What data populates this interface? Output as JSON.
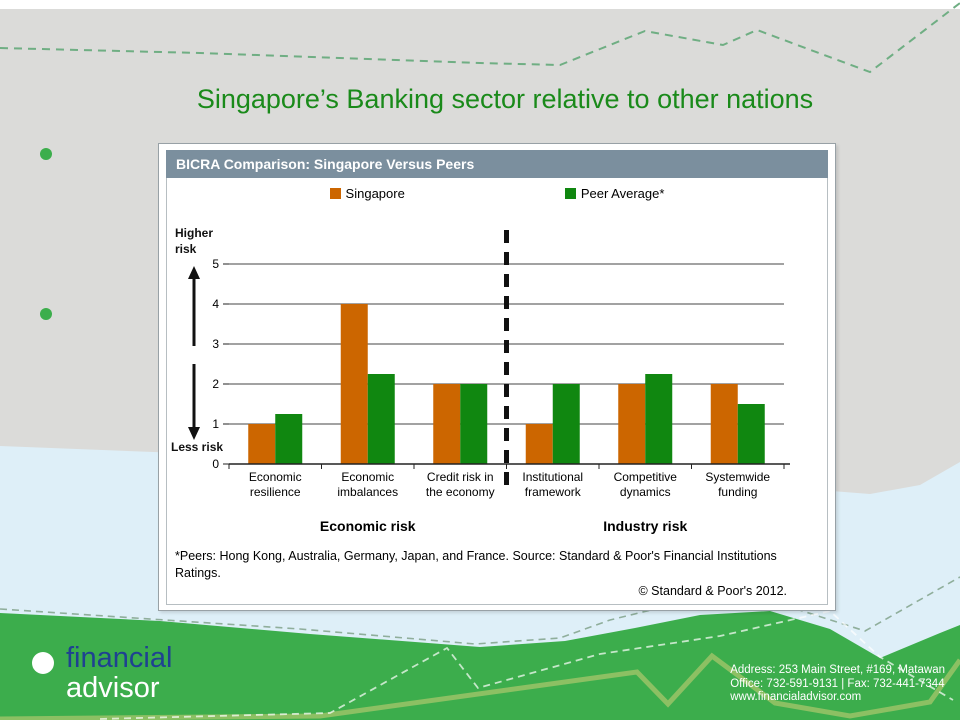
{
  "slide": {
    "title": "Singapore’s Banking sector relative to other nations"
  },
  "panel": {
    "header": "BICRA Comparison: Singapore Versus Peers",
    "footnote": "*Peers: Hong Kong, Australia, Germany, Japan, and France. Source: Standard & Poor's Financial Institutions Ratings.",
    "copyright": "© Standard & Poor's 2012."
  },
  "chart_data": {
    "type": "bar",
    "title": "BICRA Comparison: Singapore Versus Peers",
    "categories": [
      "Economic resilience",
      "Economic imbalances",
      "Credit risk in the economy",
      "Institutional framework",
      "Competitive dynamics",
      "Systemwide funding"
    ],
    "label_lines": [
      [
        "Economic",
        "resilience"
      ],
      [
        "Economic",
        "imbalances"
      ],
      [
        "Credit risk in",
        "the economy"
      ],
      [
        "Institutional",
        "framework"
      ],
      [
        "Competitive",
        "dynamics"
      ],
      [
        "Systemwide",
        "funding"
      ]
    ],
    "series": [
      {
        "name": "Singapore",
        "color": "#CC6600",
        "values": [
          1,
          4,
          2,
          1,
          2,
          2
        ]
      },
      {
        "name": "Peer Average*",
        "color": "#108710",
        "values": [
          1.25,
          2.25,
          2,
          2,
          2.25,
          1.5
        ]
      }
    ],
    "ylim": [
      0,
      5
    ],
    "yticks": [
      0,
      1,
      2,
      3,
      4,
      5
    ],
    "xlabel": "",
    "ylabel": "",
    "grid": true,
    "legend_position": "top",
    "divider_after_category": 3,
    "group_labels": [
      {
        "label": "Economic risk",
        "from": 0,
        "to": 2
      },
      {
        "label": "Industry risk",
        "from": 3,
        "to": 5
      }
    ],
    "axis_annotations": {
      "top": "Higher risk",
      "bottom": "Less risk"
    }
  },
  "footer": {
    "logo_line1": "financial",
    "logo_line2": "advisor",
    "address_line1": "Address: 253 Main Street, #169, Matawan",
    "address_line2": "Office: 732-591-9131 | Fax: 732-441-7344",
    "address_line3": "www.financialadvisor.com"
  },
  "colors": {
    "title_green": "#1A8A1A",
    "header_slate": "#7B8F9E",
    "singapore_orange": "#CC6600",
    "peer_green": "#108710",
    "footer_green": "#3CAD4C",
    "logo_navy": "#1F4191",
    "band_blue": "#DEEFF8",
    "background_gray": "#DBDBD9",
    "olive_line": "#8CC063"
  }
}
